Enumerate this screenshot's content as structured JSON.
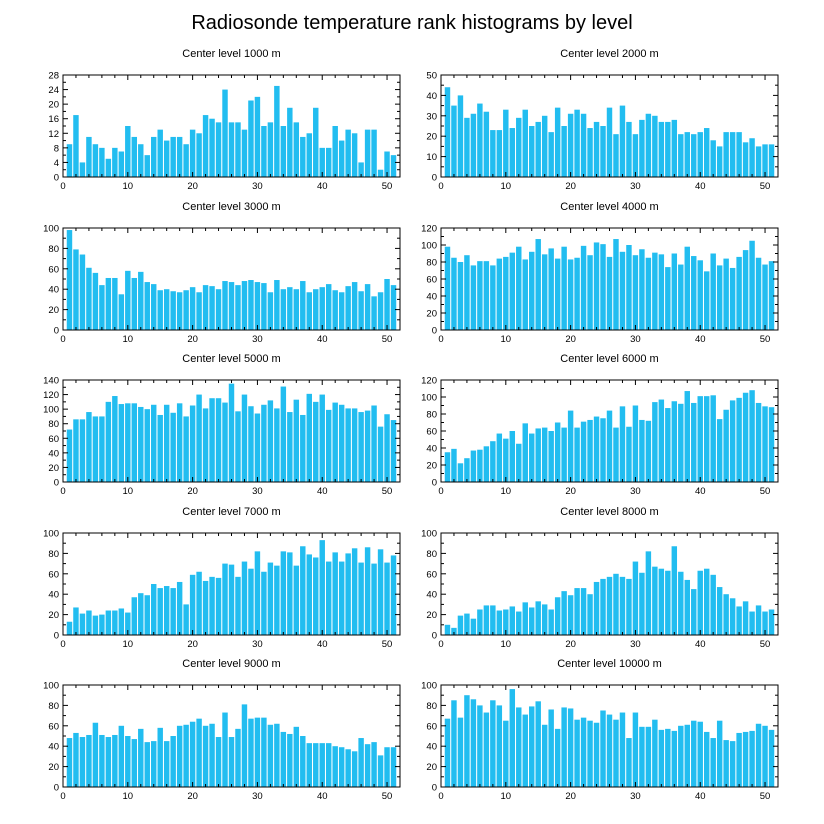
{
  "title": "Radiosonde temperature rank histograms by level",
  "bar_color": "#22bdf0",
  "chart_data": [
    {
      "type": "bar",
      "title": "Center level 1000 m",
      "xlim": [
        0,
        52
      ],
      "ylim": [
        0,
        28
      ],
      "xticks": [
        0,
        10,
        20,
        30,
        40,
        50
      ],
      "yticks": [
        0,
        4,
        8,
        12,
        16,
        20,
        24,
        28
      ],
      "values": [
        9,
        17,
        4,
        11,
        9,
        8,
        5,
        8,
        7,
        14,
        11,
        9,
        6,
        11,
        13,
        10,
        11,
        11,
        9,
        13,
        12,
        17,
        16,
        15,
        24,
        15,
        15,
        13,
        21,
        22,
        14,
        15,
        25,
        14,
        19,
        15,
        11,
        12,
        19,
        8,
        8,
        14,
        10,
        13,
        12,
        4,
        13,
        13,
        2,
        7,
        6
      ]
    },
    {
      "type": "bar",
      "title": "Center level 2000 m",
      "xlim": [
        0,
        52
      ],
      "ylim": [
        0,
        50
      ],
      "xticks": [
        0,
        10,
        20,
        30,
        40,
        50
      ],
      "yticks": [
        0,
        10,
        20,
        30,
        40,
        50
      ],
      "values": [
        44,
        35,
        40,
        29,
        31,
        36,
        32,
        23,
        23,
        33,
        24,
        29,
        33,
        25,
        27,
        30,
        22,
        34,
        25,
        31,
        33,
        31,
        24,
        27,
        25,
        34,
        21,
        35,
        27,
        21,
        28,
        31,
        30,
        27,
        27,
        28,
        21,
        22,
        21,
        22,
        24,
        18,
        15,
        22,
        22,
        22,
        17,
        19,
        15,
        16,
        16
      ]
    },
    {
      "type": "bar",
      "title": "Center level 3000 m",
      "xlim": [
        0,
        52
      ],
      "ylim": [
        0,
        100
      ],
      "xticks": [
        0,
        10,
        20,
        30,
        40,
        50
      ],
      "yticks": [
        0,
        20,
        40,
        60,
        80,
        100
      ],
      "values": [
        98,
        79,
        74,
        61,
        56,
        44,
        51,
        51,
        35,
        58,
        51,
        57,
        47,
        45,
        39,
        40,
        38,
        37,
        39,
        42,
        37,
        44,
        43,
        40,
        48,
        47,
        44,
        48,
        49,
        47,
        46,
        37,
        49,
        40,
        42,
        40,
        48,
        37,
        40,
        42,
        45,
        39,
        37,
        43,
        47,
        38,
        45,
        33,
        37,
        50,
        44
      ]
    },
    {
      "type": "bar",
      "title": "Center level 4000 m",
      "xlim": [
        0,
        52
      ],
      "ylim": [
        0,
        120
      ],
      "xticks": [
        0,
        10,
        20,
        30,
        40,
        50
      ],
      "yticks": [
        0,
        20,
        40,
        60,
        80,
        100,
        120
      ],
      "values": [
        98,
        85,
        80,
        88,
        76,
        81,
        81,
        76,
        84,
        86,
        91,
        98,
        83,
        92,
        107,
        89,
        96,
        84,
        98,
        83,
        85,
        99,
        88,
        103,
        101,
        86,
        107,
        92,
        100,
        88,
        95,
        85,
        91,
        89,
        74,
        90,
        77,
        98,
        87,
        82,
        69,
        90,
        76,
        84,
        73,
        86,
        94,
        105,
        85,
        77,
        81
      ]
    },
    {
      "type": "bar",
      "title": "Center level 5000 m",
      "xlim": [
        0,
        52
      ],
      "ylim": [
        0,
        140
      ],
      "xticks": [
        0,
        10,
        20,
        30,
        40,
        50
      ],
      "yticks": [
        0,
        20,
        40,
        60,
        80,
        100,
        120,
        140
      ],
      "values": [
        72,
        86,
        86,
        96,
        90,
        90,
        110,
        118,
        107,
        108,
        108,
        103,
        100,
        106,
        92,
        106,
        95,
        108,
        90,
        105,
        120,
        101,
        115,
        115,
        109,
        135,
        97,
        120,
        104,
        94,
        106,
        112,
        101,
        131,
        96,
        113,
        92,
        121,
        110,
        120,
        99,
        109,
        106,
        101,
        101,
        96,
        98,
        105,
        76,
        93,
        85
      ]
    },
    {
      "type": "bar",
      "title": "Center level 6000 m",
      "xlim": [
        0,
        52
      ],
      "ylim": [
        0,
        120
      ],
      "xticks": [
        0,
        10,
        20,
        30,
        40,
        50
      ],
      "yticks": [
        0,
        20,
        40,
        60,
        80,
        100,
        120
      ],
      "values": [
        35,
        39,
        22,
        28,
        37,
        38,
        42,
        48,
        57,
        51,
        60,
        45,
        69,
        57,
        63,
        64,
        60,
        70,
        64,
        84,
        64,
        71,
        73,
        77,
        75,
        84,
        64,
        89,
        65,
        90,
        73,
        72,
        94,
        97,
        87,
        95,
        92,
        107,
        93,
        101,
        101,
        102,
        74,
        85,
        96,
        99,
        105,
        108,
        93,
        89,
        88
      ]
    },
    {
      "type": "bar",
      "title": "Center level 7000 m",
      "xlim": [
        0,
        52
      ],
      "ylim": [
        0,
        100
      ],
      "xticks": [
        0,
        10,
        20,
        30,
        40,
        50
      ],
      "yticks": [
        0,
        20,
        40,
        60,
        80,
        100
      ],
      "values": [
        13,
        27,
        21,
        24,
        19,
        20,
        24,
        24,
        26,
        22,
        37,
        41,
        39,
        50,
        46,
        48,
        46,
        52,
        30,
        59,
        62,
        53,
        57,
        56,
        70,
        69,
        57,
        72,
        65,
        82,
        62,
        71,
        68,
        82,
        81,
        68,
        87,
        79,
        76,
        93,
        72,
        81,
        72,
        80,
        85,
        71,
        86,
        70,
        84,
        71,
        78
      ]
    },
    {
      "type": "bar",
      "title": "Center level 8000 m",
      "xlim": [
        0,
        52
      ],
      "ylim": [
        0,
        100
      ],
      "xticks": [
        0,
        10,
        20,
        30,
        40,
        50
      ],
      "yticks": [
        0,
        20,
        40,
        60,
        80,
        100
      ],
      "values": [
        10,
        7,
        19,
        21,
        16,
        25,
        29,
        29,
        24,
        25,
        28,
        23,
        32,
        27,
        33,
        30,
        25,
        37,
        43,
        39,
        46,
        46,
        40,
        52,
        55,
        57,
        60,
        57,
        55,
        72,
        61,
        82,
        67,
        65,
        63,
        87,
        62,
        54,
        45,
        63,
        65,
        59,
        47,
        40,
        36,
        28,
        33,
        23,
        29,
        23,
        25
      ]
    },
    {
      "type": "bar",
      "title": "Center level 9000 m",
      "xlim": [
        0,
        52
      ],
      "ylim": [
        0,
        100
      ],
      "xticks": [
        0,
        10,
        20,
        30,
        40,
        50
      ],
      "yticks": [
        0,
        20,
        40,
        60,
        80,
        100
      ],
      "values": [
        48,
        53,
        49,
        51,
        63,
        51,
        49,
        51,
        60,
        50,
        47,
        57,
        44,
        45,
        58,
        45,
        50,
        60,
        61,
        64,
        67,
        60,
        62,
        49,
        73,
        49,
        57,
        81,
        67,
        68,
        68,
        61,
        62,
        54,
        52,
        59,
        50,
        43,
        43,
        43,
        43,
        40,
        39,
        37,
        35,
        48,
        42,
        44,
        31,
        39,
        39
      ]
    },
    {
      "type": "bar",
      "title": "Center level 10000 m",
      "xlim": [
        0,
        52
      ],
      "ylim": [
        0,
        100
      ],
      "xticks": [
        0,
        10,
        20,
        30,
        40,
        50
      ],
      "yticks": [
        0,
        20,
        40,
        60,
        80,
        100
      ],
      "values": [
        67,
        85,
        68,
        90,
        86,
        80,
        73,
        85,
        80,
        65,
        96,
        78,
        71,
        79,
        84,
        61,
        76,
        57,
        78,
        77,
        66,
        68,
        65,
        63,
        75,
        71,
        66,
        73,
        48,
        73,
        59,
        59,
        66,
        56,
        57,
        55,
        60,
        61,
        65,
        64,
        54,
        48,
        65,
        46,
        45,
        53,
        54,
        55,
        62,
        60,
        56
      ]
    }
  ]
}
